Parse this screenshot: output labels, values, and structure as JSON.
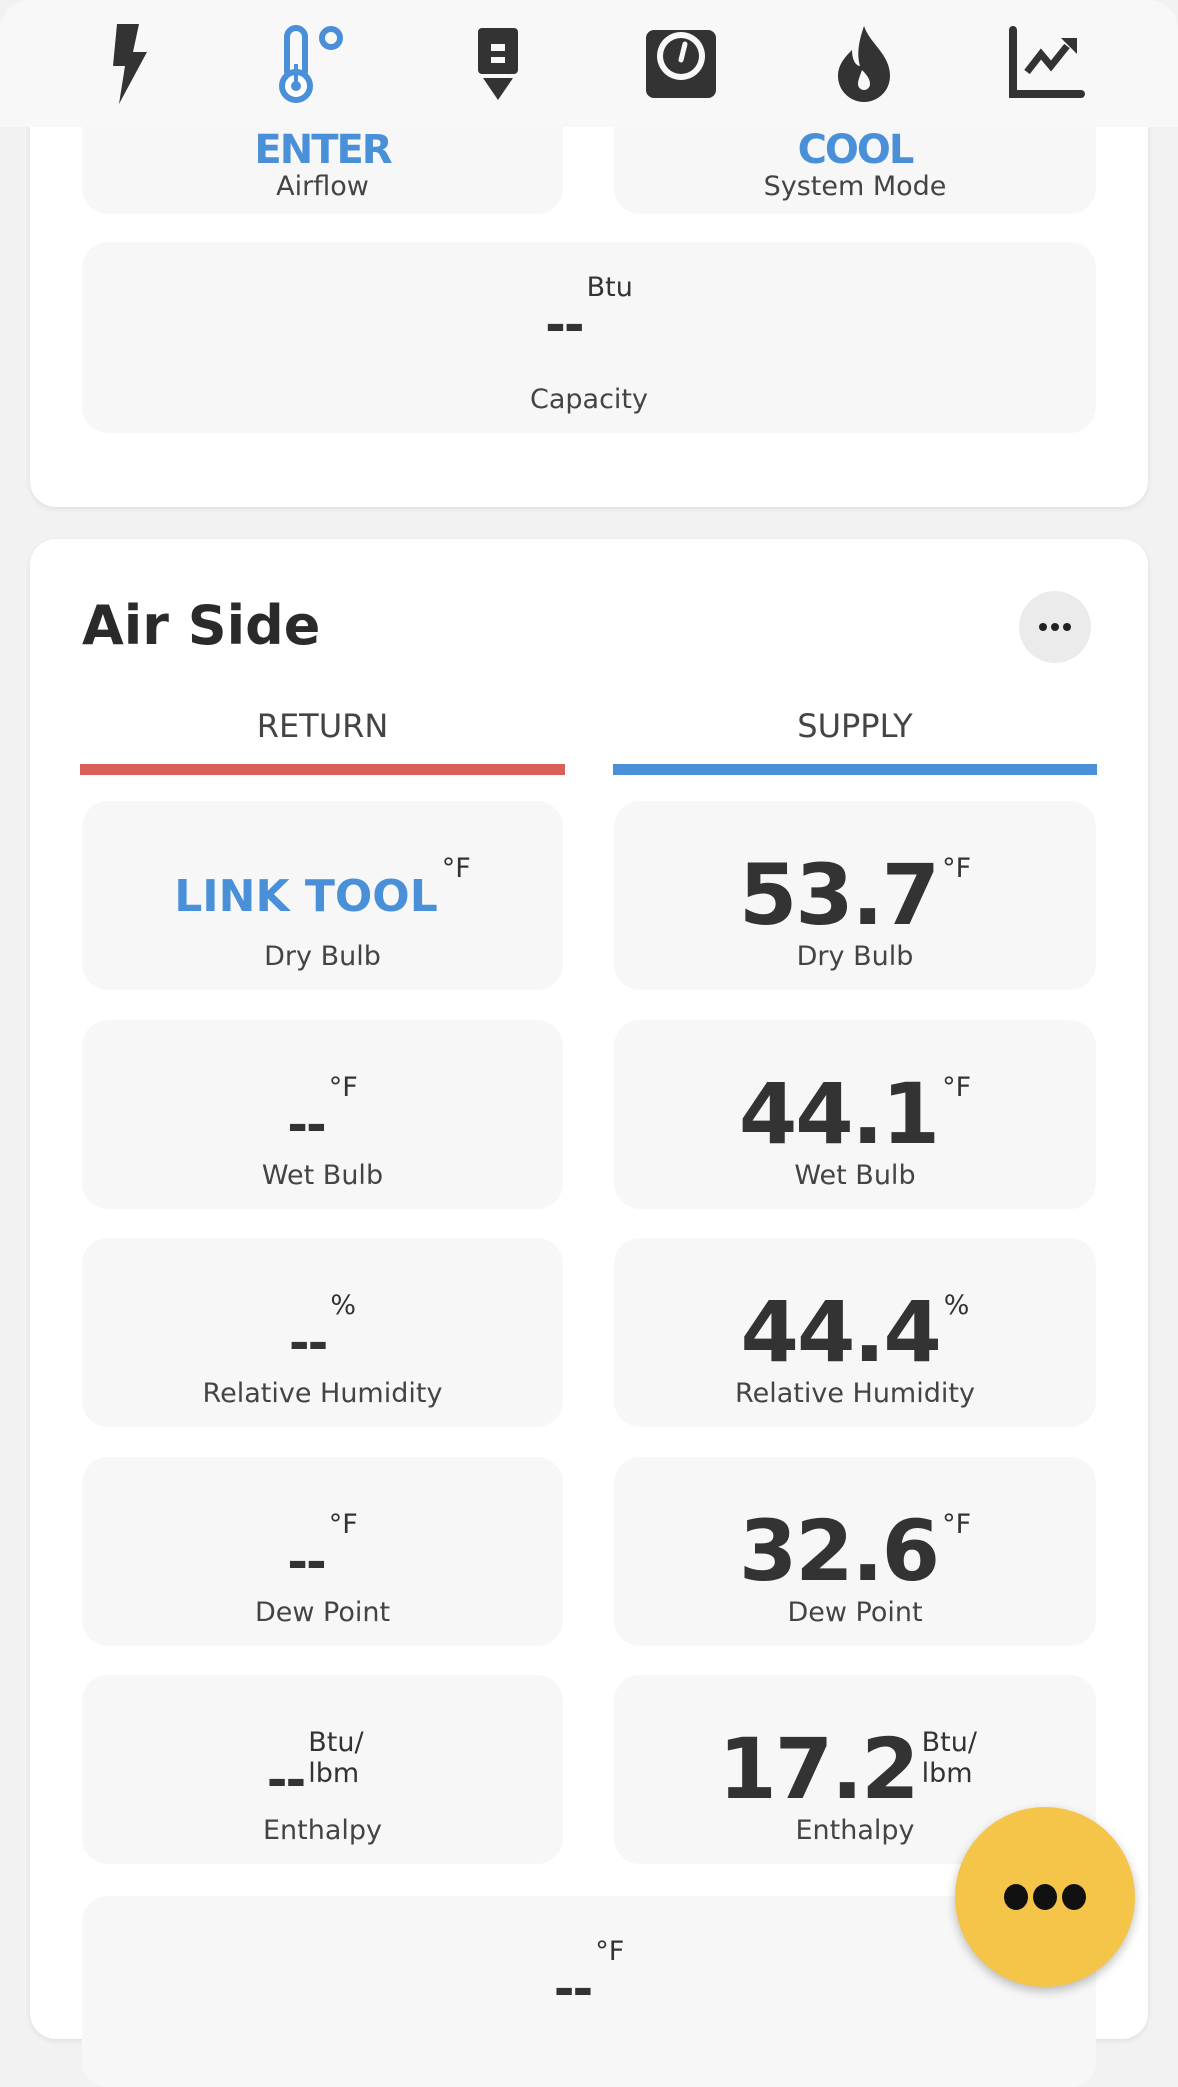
{
  "toolbar": {
    "icons": [
      "bolt-icon",
      "thermometer-icon",
      "probe-download-icon",
      "gauge-icon",
      "flame-icon",
      "chart-icon"
    ],
    "active_color": "#4a90d9"
  },
  "system": {
    "airflow": {
      "value": "ENTER",
      "label": "Airflow"
    },
    "mode": {
      "value": "COOL",
      "label": "System Mode"
    },
    "capacity": {
      "value": "--",
      "unit": "Btu",
      "label": "Capacity"
    }
  },
  "air_side": {
    "title": "Air Side",
    "tabs": [
      {
        "label": "RETURN",
        "color": "#d9605a"
      },
      {
        "label": "SUPPLY",
        "color": "#4a90d9"
      }
    ],
    "return": [
      {
        "value": "LINK TOOL",
        "unit": "°F",
        "label": "Dry Bulb"
      },
      {
        "value": "--",
        "unit": "°F",
        "label": "Wet Bulb"
      },
      {
        "value": "--",
        "unit": "%",
        "label": "Relative Humidity"
      },
      {
        "value": "--",
        "unit": "°F",
        "label": "Dew Point"
      },
      {
        "value": "--",
        "unit": "Btu/ lbm",
        "label": "Enthalpy"
      }
    ],
    "supply": [
      {
        "value": "53.7",
        "unit": "°F",
        "label": "Dry Bulb"
      },
      {
        "value": "44.1",
        "unit": "°F",
        "label": "Wet Bulb"
      },
      {
        "value": "44.4",
        "unit": "%",
        "label": "Relative Humidity"
      },
      {
        "value": "32.6",
        "unit": "°F",
        "label": "Dew Point"
      },
      {
        "value": "17.2",
        "unit": "Btu/ lbm",
        "label": "Enthalpy"
      }
    ],
    "bottom": {
      "value": "--",
      "unit": "°F"
    }
  },
  "fab": {
    "color": "#f5c54a"
  }
}
